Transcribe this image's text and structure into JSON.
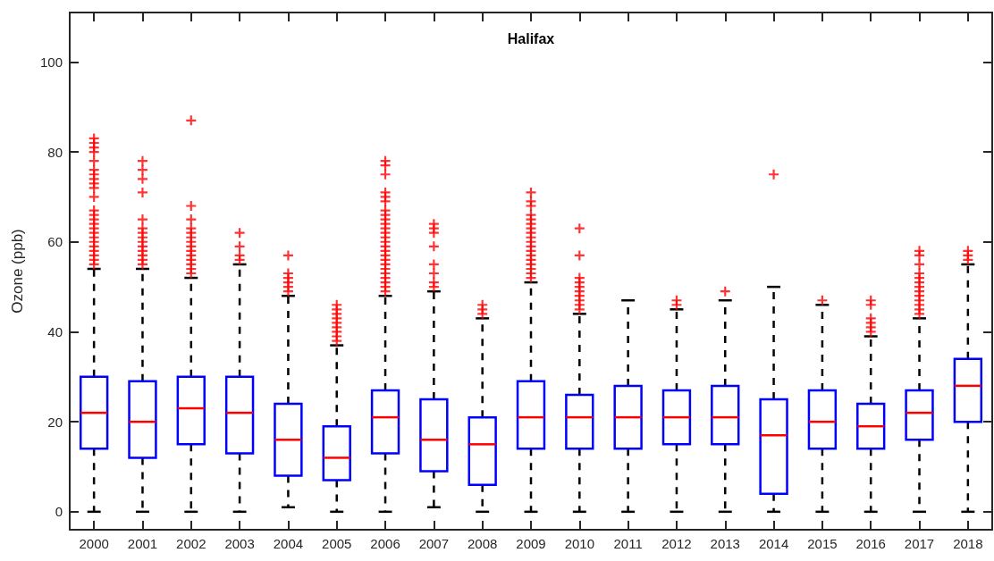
{
  "chart_data": {
    "type": "box",
    "title": "Halifax",
    "ylabel": "Ozone (ppb)",
    "categories": [
      "2000",
      "2001",
      "2002",
      "2003",
      "2004",
      "2005",
      "2006",
      "2007",
      "2008",
      "2009",
      "2010",
      "2011",
      "2012",
      "2013",
      "2014",
      "2015",
      "2016",
      "2017",
      "2018"
    ],
    "color": "#0000ff",
    "boxes": [
      {
        "low": 0,
        "q1": 14,
        "median": 22,
        "q3": 30,
        "high": 54,
        "outliers": [
          55,
          56,
          57,
          58,
          59,
          60,
          61,
          62,
          63,
          64,
          65,
          66,
          67,
          70,
          72,
          73,
          74,
          75,
          76,
          78,
          80,
          81,
          82,
          83
        ]
      },
      {
        "low": 0,
        "q1": 12,
        "median": 20,
        "q3": 29,
        "high": 54,
        "outliers": [
          55,
          56,
          57,
          58,
          59,
          60,
          61,
          62,
          63,
          65,
          71,
          74,
          76,
          78
        ]
      },
      {
        "low": 0,
        "q1": 15,
        "median": 23,
        "q3": 30,
        "high": 52,
        "outliers": [
          53,
          54,
          55,
          56,
          57,
          58,
          59,
          60,
          61,
          62,
          63,
          65,
          68,
          87
        ]
      },
      {
        "low": 0,
        "q1": 13,
        "median": 22,
        "q3": 30,
        "high": 55,
        "outliers": [
          56,
          57,
          59,
          62
        ]
      },
      {
        "low": 1,
        "q1": 8,
        "median": 16,
        "q3": 24,
        "high": 48,
        "outliers": [
          49,
          50,
          51,
          52,
          53,
          57
        ]
      },
      {
        "low": 0,
        "q1": 7,
        "median": 12,
        "q3": 19,
        "high": 37,
        "outliers": [
          38,
          39,
          40,
          41,
          42,
          43,
          44,
          45,
          46
        ]
      },
      {
        "low": 0,
        "q1": 13,
        "median": 21,
        "q3": 27,
        "high": 48,
        "outliers": [
          49,
          50,
          51,
          52,
          53,
          54,
          55,
          56,
          57,
          58,
          59,
          60,
          61,
          62,
          63,
          64,
          65,
          66,
          67,
          69,
          70,
          71,
          75,
          77,
          78
        ]
      },
      {
        "low": 1,
        "q1": 9,
        "median": 16,
        "q3": 25,
        "high": 49,
        "outliers": [
          50,
          51,
          53,
          55,
          59,
          62,
          63,
          64
        ]
      },
      {
        "low": 0,
        "q1": 6,
        "median": 15,
        "q3": 21,
        "high": 43,
        "outliers": [
          44,
          45,
          46
        ]
      },
      {
        "low": 0,
        "q1": 14,
        "median": 21,
        "q3": 29,
        "high": 51,
        "outliers": [
          52,
          53,
          54,
          55,
          56,
          57,
          58,
          59,
          60,
          61,
          62,
          63,
          64,
          65,
          66,
          68,
          69,
          71
        ]
      },
      {
        "low": 0,
        "q1": 14,
        "median": 21,
        "q3": 26,
        "high": 44,
        "outliers": [
          45,
          46,
          47,
          48,
          49,
          50,
          51,
          52,
          57,
          63
        ]
      },
      {
        "low": 0,
        "q1": 14,
        "median": 21,
        "q3": 28,
        "high": 47
      },
      {
        "low": 0,
        "q1": 15,
        "median": 21,
        "q3": 27,
        "high": 45,
        "outliers": [
          46,
          47
        ]
      },
      {
        "low": 0,
        "q1": 15,
        "median": 21,
        "q3": 28,
        "high": 47,
        "outliers": [
          49
        ]
      },
      {
        "low": 0,
        "q1": 4,
        "median": 17,
        "q3": 25,
        "high": 50,
        "outliers": [
          75
        ]
      },
      {
        "low": 0,
        "q1": 14,
        "median": 20,
        "q3": 27,
        "high": 46,
        "outliers": [
          47
        ]
      },
      {
        "low": 0,
        "q1": 14,
        "median": 19,
        "q3": 24,
        "high": 39,
        "outliers": [
          40,
          41,
          42,
          43,
          46,
          47
        ]
      },
      {
        "low": 0,
        "q1": 16,
        "median": 22,
        "q3": 27,
        "high": 43,
        "outliers": [
          44,
          45,
          46,
          47,
          48,
          49,
          50,
          51,
          52,
          53,
          55,
          57,
          58
        ]
      },
      {
        "low": 0,
        "q1": 20,
        "median": 28,
        "q3": 34,
        "high": 55,
        "outliers": [
          56,
          57,
          58
        ]
      }
    ],
    "ylim": [
      -4,
      111
    ],
    "yticks": [
      0,
      20,
      40,
      60,
      80,
      100
    ],
    "grid": false
  }
}
